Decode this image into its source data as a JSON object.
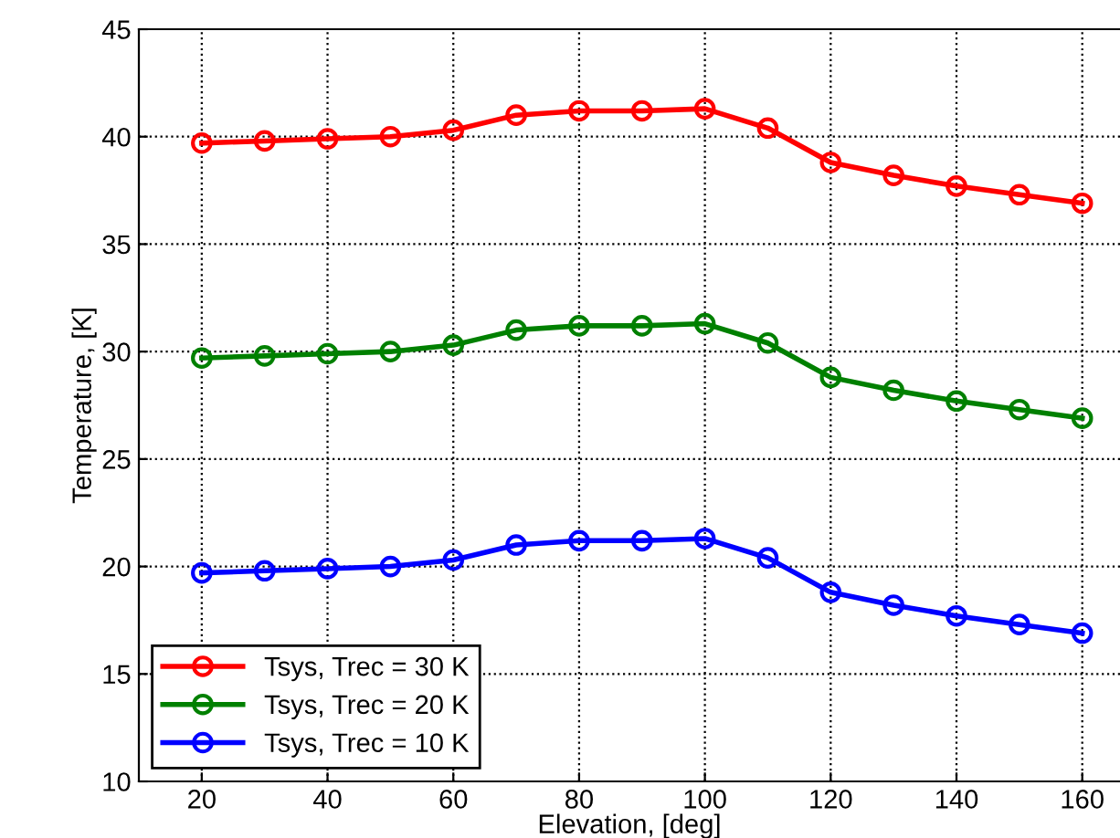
{
  "chart_data": {
    "type": "line",
    "xlabel": "Elevation, [deg]",
    "ylabel": "Temperature, [K]",
    "xlim": [
      10,
      166
    ],
    "xticks": [
      20,
      40,
      60,
      80,
      100,
      120,
      140,
      160
    ],
    "ylim": [
      10,
      45
    ],
    "yticks": [
      10,
      15,
      20,
      25,
      30,
      35,
      40,
      45
    ],
    "grid": true,
    "legend": "bottom left",
    "marker": "circle",
    "line_style": "solid",
    "x": [
      20,
      30,
      40,
      50,
      60,
      70,
      80,
      90,
      100,
      110,
      120,
      130,
      140,
      150,
      160
    ],
    "series": [
      {
        "name": "Tsys, Trec = 30 K",
        "color": "#ff0000",
        "values": [
          39.7,
          39.8,
          39.9,
          40.0,
          40.3,
          41.0,
          41.2,
          41.2,
          41.3,
          40.4,
          38.8,
          38.2,
          37.7,
          37.3,
          36.9
        ]
      },
      {
        "name": "Tsys, Trec = 20 K",
        "color": "#008000",
        "values": [
          29.7,
          29.8,
          29.9,
          30.0,
          30.3,
          31.0,
          31.2,
          31.2,
          31.3,
          30.4,
          28.8,
          28.2,
          27.7,
          27.3,
          26.9
        ]
      },
      {
        "name": "Tsys, Trec = 10 K",
        "color": "#0000ff",
        "values": [
          19.7,
          19.8,
          19.9,
          20.0,
          20.3,
          21.0,
          21.2,
          21.2,
          21.3,
          20.4,
          18.8,
          18.2,
          17.7,
          17.3,
          16.9
        ]
      }
    ]
  }
}
